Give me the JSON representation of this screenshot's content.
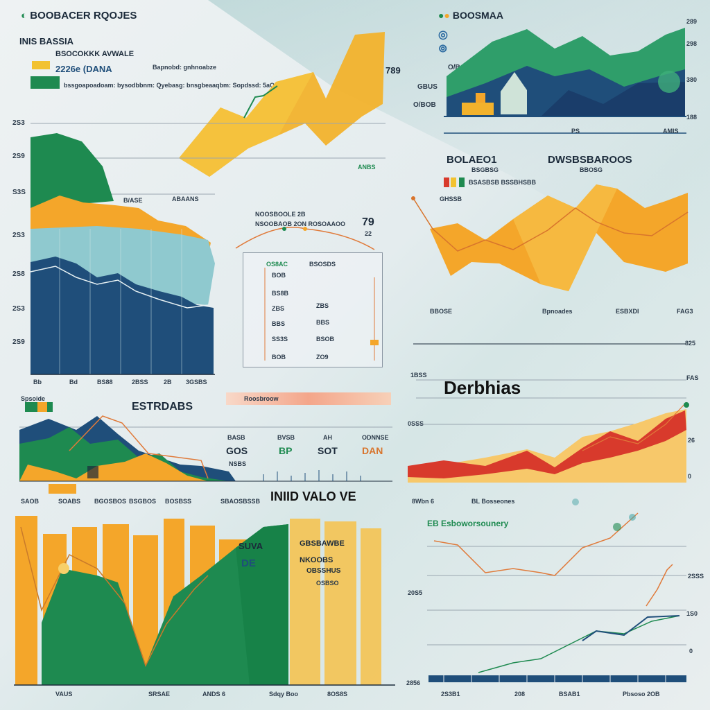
{
  "header": {
    "brand": "BOOBACER RQOJES",
    "brand_right": "BOOSMAA"
  },
  "top_left": {
    "title": "INIS BASSIA",
    "sub1": "BSOCOKKK AVWALE",
    "sub2": "2226e (DANA",
    "sub3": "Bapnobd: gnhnoabze",
    "caption": "bssgoapoadoam: bysodbbnm: Qyebasg: bnsgbeaaqbm: Sopdssd: 5aO",
    "peak_label": "789"
  },
  "top_right": {
    "label_a": "GBUS",
    "label_b": "O/BOB",
    "label_c": "O/B",
    "ticks_right": [
      "289",
      "298",
      "380",
      "188"
    ],
    "axis_bottom": [
      "PS",
      "AMIS"
    ]
  },
  "left_area": {
    "y_ticks": [
      "2S3",
      "2S9",
      "S3S",
      "2S3",
      "2S8",
      "2S3",
      "2S9"
    ],
    "x_ticks": [
      "Bb",
      "Bd",
      "BS88",
      "2BSS",
      "2B",
      "3GSBS"
    ],
    "right_label": "ANBS",
    "mid_label": "B/ASE",
    "mid_label2": "ABAANS"
  },
  "center_box": {
    "title1": "NOOSBOOLE 2B",
    "title2": "NSOOBAOB 2ON ROSOAAOO",
    "value": "79",
    "value2": "22",
    "header": "OS8AC",
    "header2": "BSOSDS",
    "rows": [
      "BOB",
      "BS8B",
      "ZBS",
      "BBS",
      "SS3S",
      "BOB"
    ],
    "rows2": [
      "ZBS",
      "BBS",
      "BSOB",
      "ZO9"
    ]
  },
  "right_mid": {
    "title_left": "BOLAEO1",
    "title_right": "DWSBSBAROOS",
    "subtitle": "BSGBSG",
    "subtitle2": "BBOSG",
    "legend1": "BSASBSB BSSBHSBB",
    "legend2": "GHSSB",
    "x_labels": [
      "BBOSE",
      "Bpnoades",
      "ESBXDI",
      "FAG3"
    ],
    "right_tick": "825"
  },
  "mid_left": {
    "tag": "Spsoide",
    "title": "ESTRDABS",
    "bar_label": "Roosbroow",
    "cols": [
      "BASB",
      "BVSB",
      "AH",
      "ODNNSE"
    ],
    "values": [
      "GOS",
      "BP",
      "SOT",
      "DAN"
    ],
    "sub": "NSBS",
    "x_labels": [
      "SAOB",
      "SOABS",
      "BGOSBOS",
      "BSGBOS",
      "BOSBSS",
      "SBAOSBSSB"
    ]
  },
  "derbhias": {
    "title": "Derbhias",
    "left_tick": "1BSS",
    "left_tick2": "0SSS",
    "right_ticks": [
      "FAS",
      "26",
      "0"
    ]
  },
  "bottom_mid": {
    "title": "INIID VALO VE"
  },
  "bottom_left": {
    "panel_text1": "SUVA",
    "panel_text2": "DE",
    "panel_text3": "GBSBAWBE",
    "panel_text4": "NKOOBS",
    "panel_text5": "OBSSHUS",
    "panel_text6": "OSBSO",
    "x_labels": [
      "VAUS",
      "SRSAE",
      "ANDS 6",
      "Sdqy Boo",
      "8OS8S"
    ]
  },
  "bottom_right": {
    "legend_a": "8Wbn 6",
    "legend_b": "BL Bosseones",
    "legend_c": "EB Esboworsounery",
    "left_tick": "20S5",
    "ticks_right": [
      "2SSS",
      "1S0",
      "0"
    ],
    "x_labels": [
      "2S3B1",
      "208",
      "BSAB1",
      "Pbsoso 2OB"
    ],
    "left_bottom": "2856"
  },
  "colors": {
    "green": "#1e8a50",
    "navy": "#1f4e7a",
    "orange": "#f4a62a",
    "yellow": "#f2c230",
    "red": "#d83a2c",
    "teal": "#4aa6a8"
  },
  "chart_data": [
    {
      "type": "area",
      "series": [
        {
          "values": [
            6,
            5,
            5.5,
            4,
            4.2,
            3.5,
            3.4
          ]
        },
        {
          "values": [
            2.8,
            3.2,
            3.0,
            2.6,
            2.8,
            2.4,
            2.2
          ]
        }
      ]
    },
    {
      "type": "line",
      "series": [
        {
          "values": [
            40,
            55,
            60,
            78,
            70,
            92,
            100
          ]
        }
      ]
    },
    {
      "type": "area",
      "series": [
        {
          "values": [
            30,
            20,
            45,
            35,
            60,
            25,
            40,
            55
          ]
        }
      ]
    },
    {
      "type": "area",
      "series": [
        {
          "values": [
            3,
            2,
            2.4,
            3,
            2.5,
            3.8,
            4.6
          ]
        }
      ]
    }
  ]
}
